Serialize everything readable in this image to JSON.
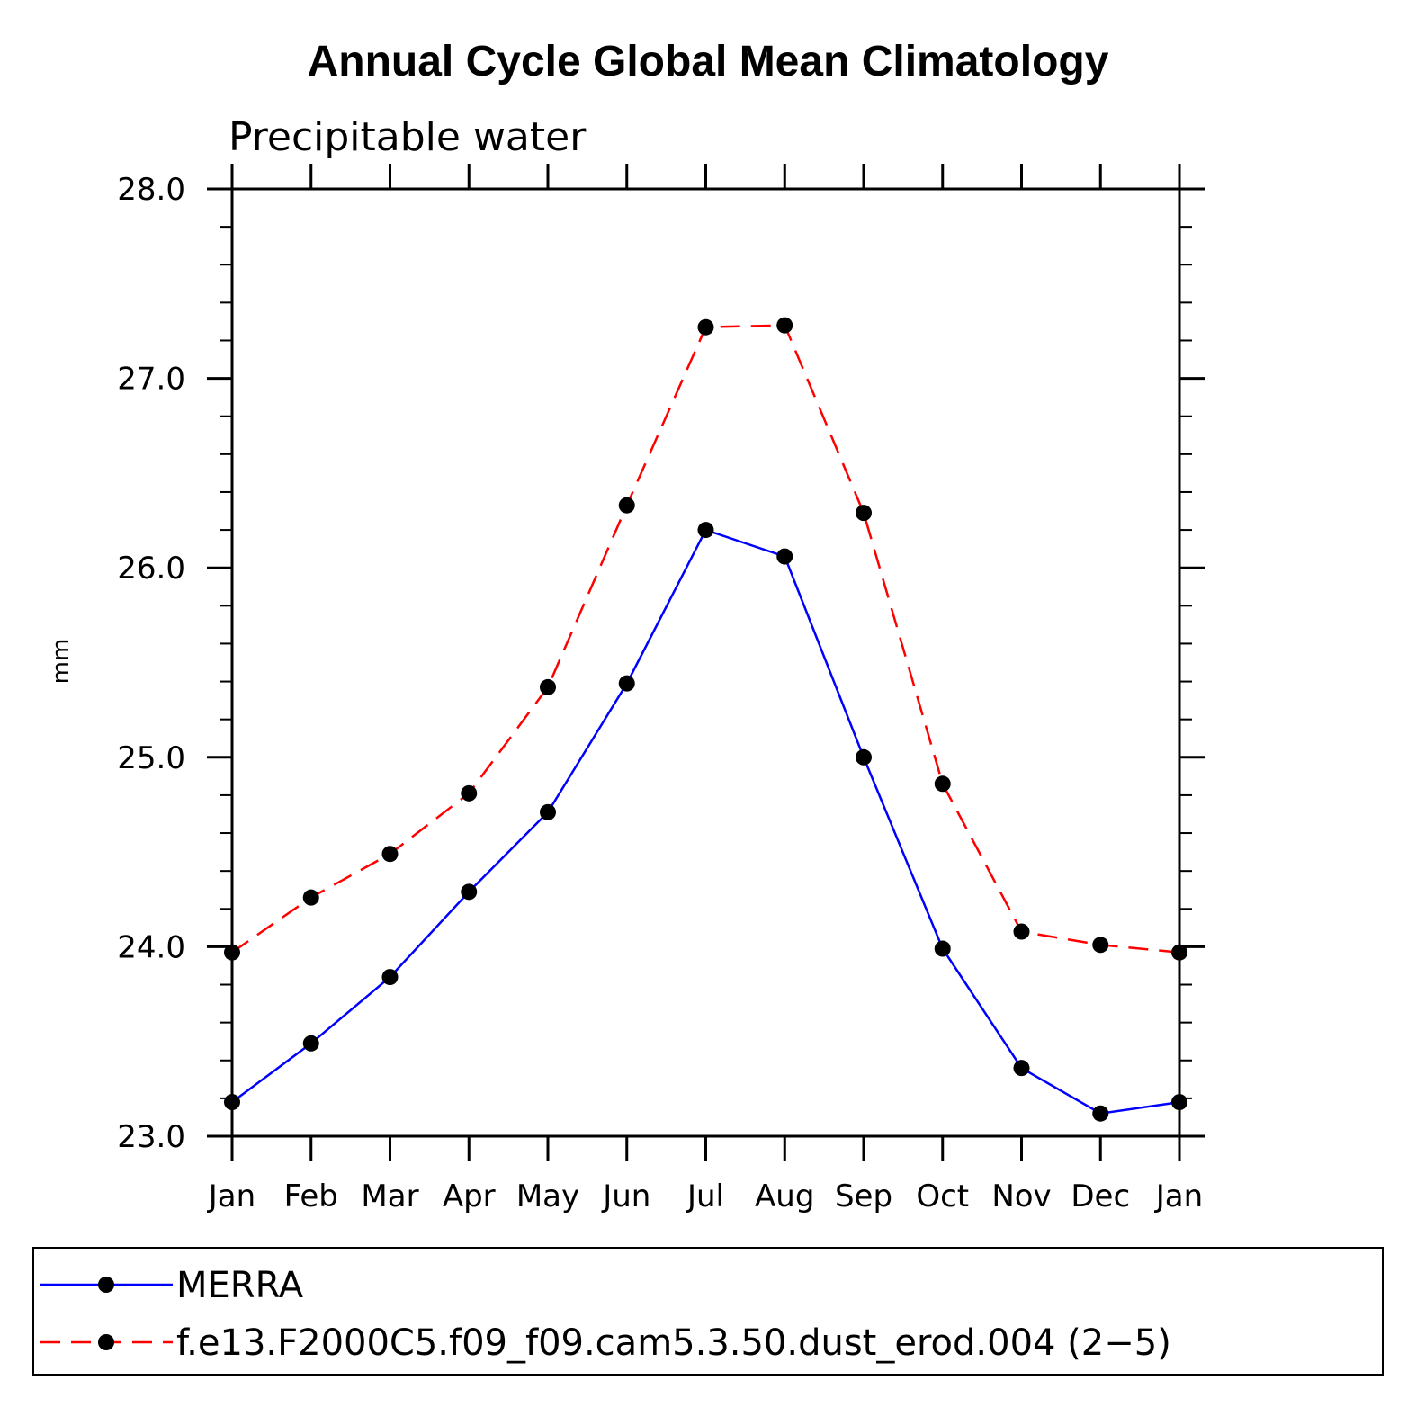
{
  "chart_data": {
    "type": "line",
    "title": "Annual Cycle Global Mean Climatology",
    "subtitle": "Precipitable water",
    "ylabel": "mm",
    "xlabel": "",
    "categories": [
      "Jan",
      "Feb",
      "Mar",
      "Apr",
      "May",
      "Jun",
      "Jul",
      "Aug",
      "Sep",
      "Oct",
      "Nov",
      "Dec",
      "Jan"
    ],
    "ylim": [
      23.0,
      28.0
    ],
    "yticks": [
      "23.0",
      "24.0",
      "25.0",
      "26.0",
      "27.0",
      "28.0"
    ],
    "legend_position": "bottom",
    "series": [
      {
        "name": "MERRA",
        "color": "#0000ff",
        "style": "solid",
        "values": [
          23.18,
          23.49,
          23.84,
          24.29,
          24.71,
          25.39,
          26.2,
          26.06,
          25.0,
          23.99,
          23.36,
          23.12,
          23.18
        ]
      },
      {
        "name": "f.e13.F2000C5.f09_f09.cam5.3.50.dust_erod.004 (2−5)",
        "color": "#ff0000",
        "style": "dashed",
        "values": [
          23.97,
          24.26,
          24.49,
          24.81,
          25.37,
          26.33,
          27.27,
          27.28,
          26.29,
          24.86,
          24.08,
          24.01,
          23.97
        ]
      }
    ]
  }
}
